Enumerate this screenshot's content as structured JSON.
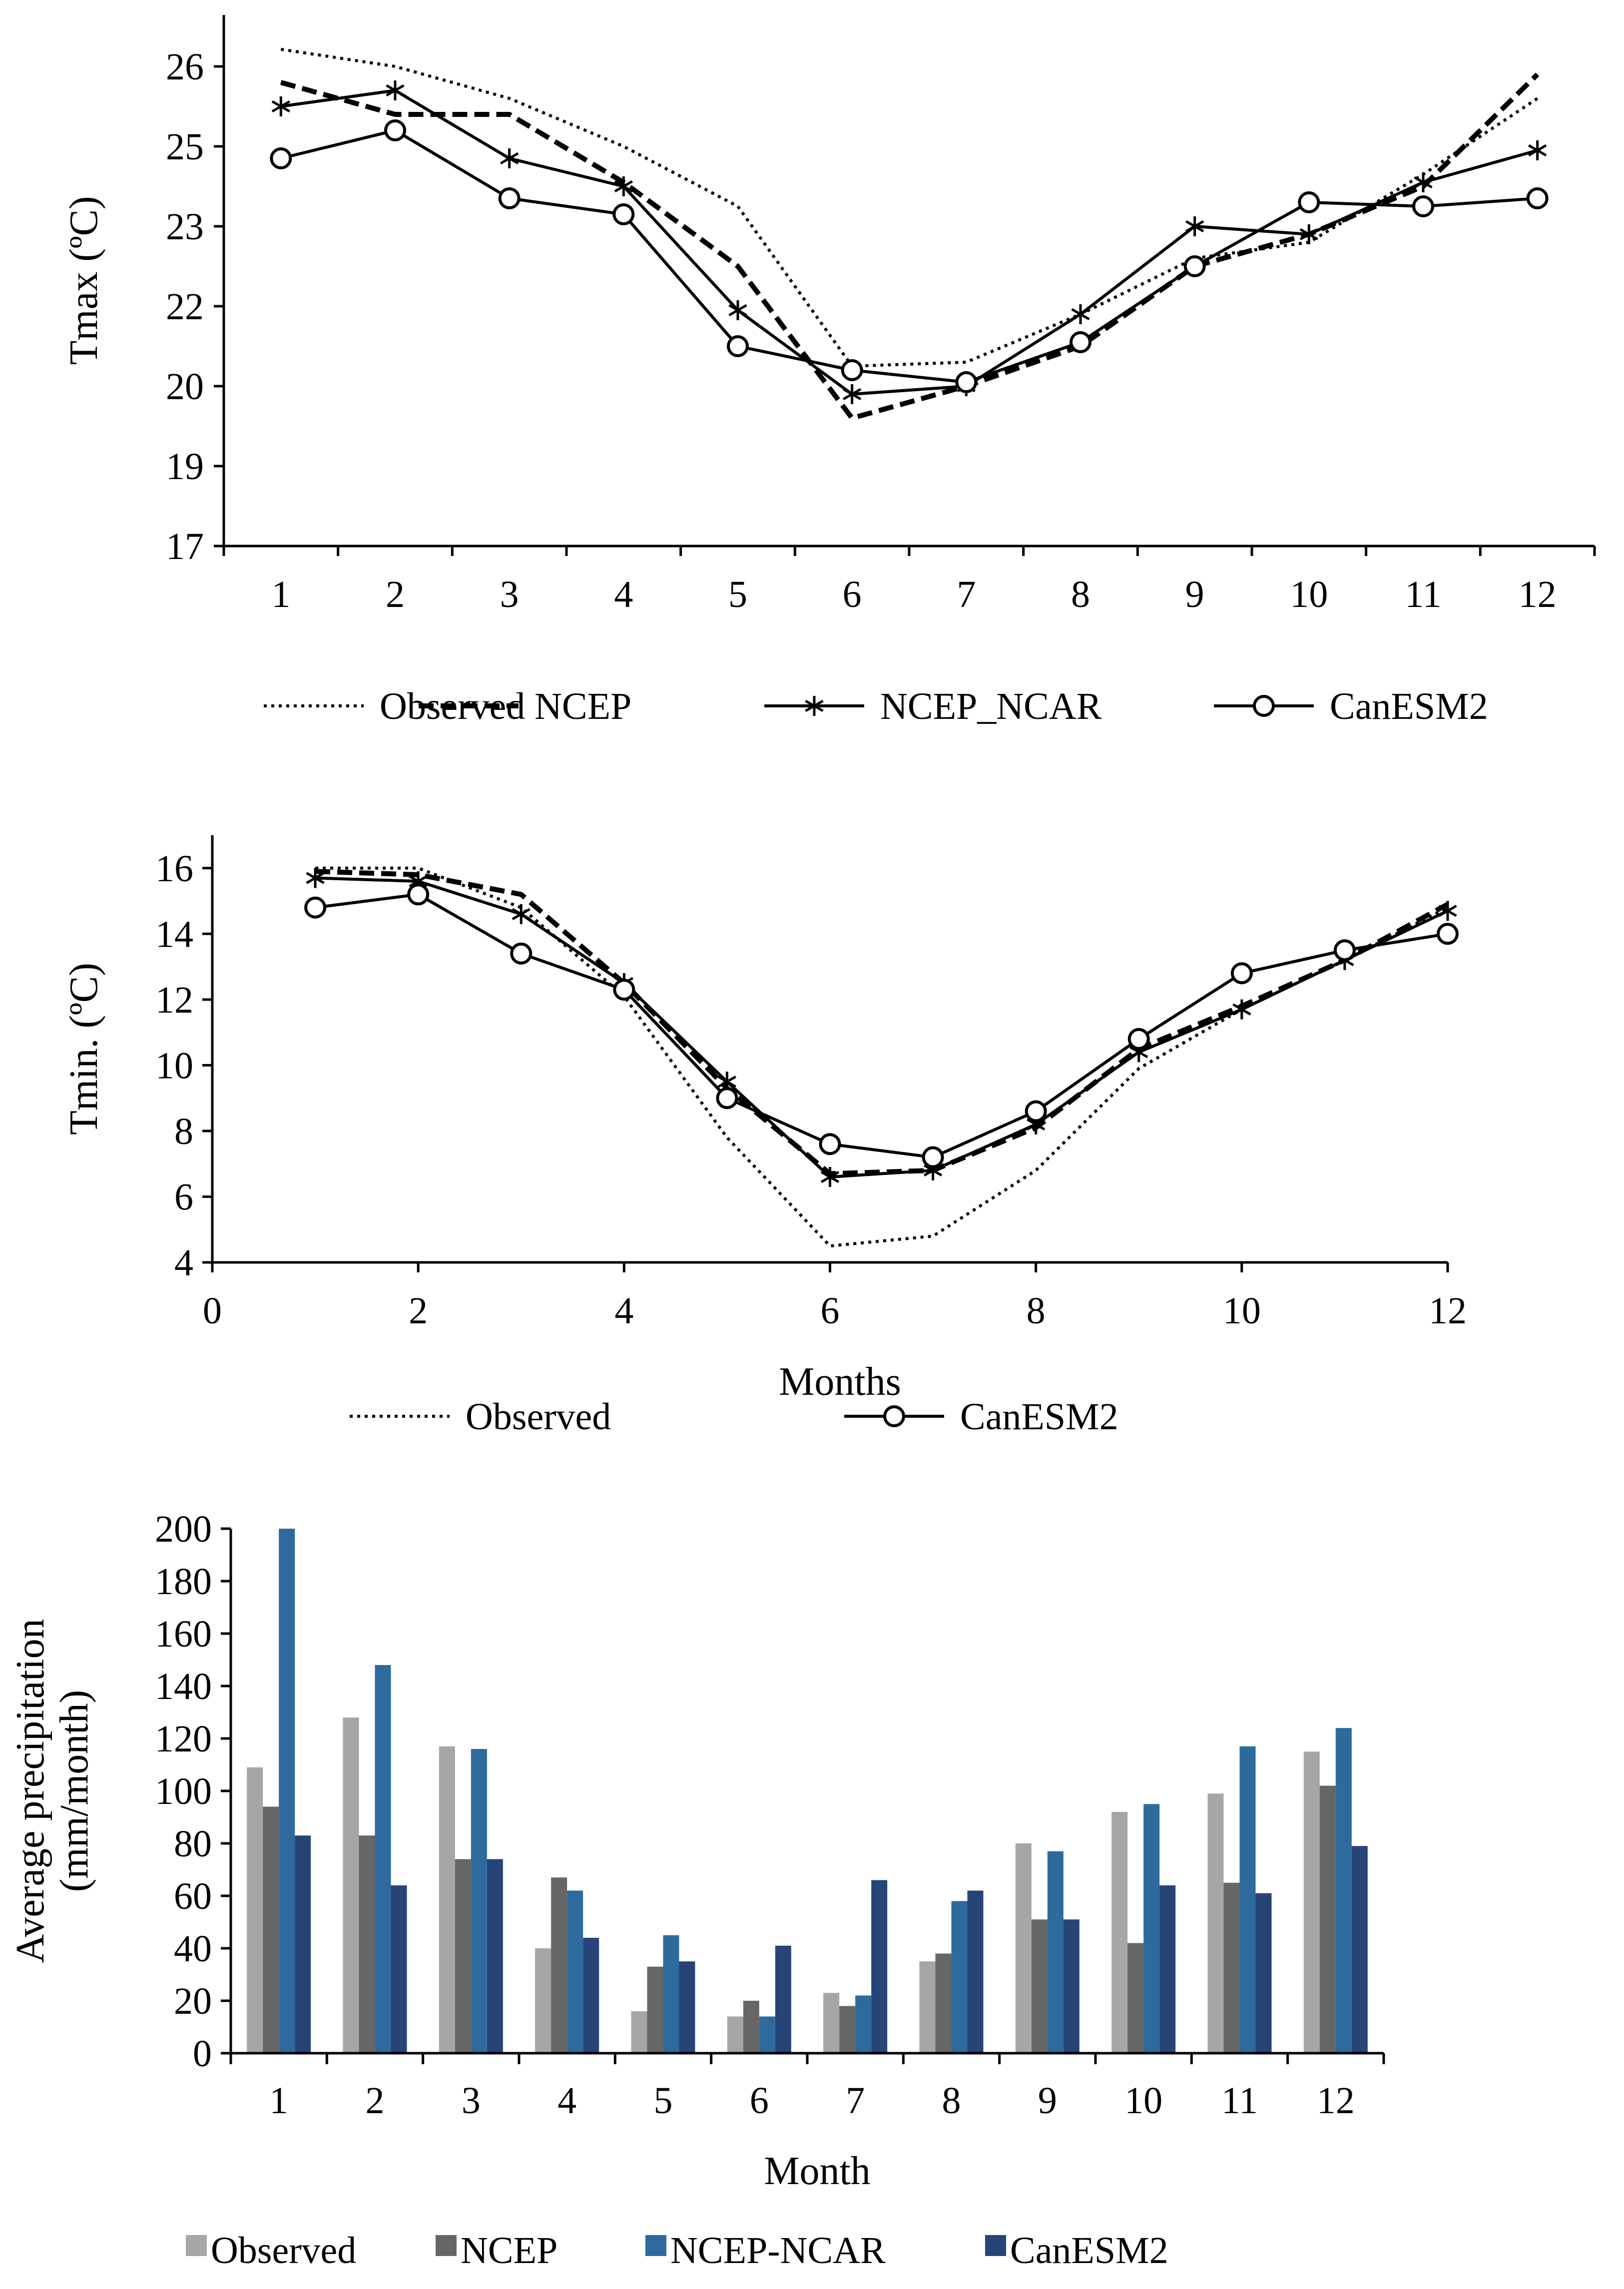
{
  "chart_data": [
    {
      "type": "line",
      "ylabel": "Tmax (ºC)",
      "xlabel": "",
      "categories": [
        "1",
        "2",
        "3",
        "4",
        "5",
        "6",
        "7",
        "8",
        "9",
        "10",
        "11",
        "12"
      ],
      "yticks": [
        "17",
        "19",
        "20",
        "22",
        "23",
        "25",
        "26"
      ],
      "ylim": [
        17,
        26.6
      ],
      "series": [
        {
          "name": "Observed",
          "style": "dotted",
          "marker": "none",
          "values": [
            26.2,
            26.0,
            25.6,
            25.0,
            23.5,
            20.5,
            20.6,
            21.8,
            22.6,
            22.8,
            24.3,
            25.6
          ]
        },
        {
          "name": "NCEP",
          "style": "dashed",
          "marker": "none",
          "values": [
            25.8,
            25.4,
            25.4,
            24.1,
            22.5,
            19.6,
            20.0,
            21.0,
            22.5,
            22.9,
            24.0,
            25.9
          ]
        },
        {
          "name": "NCEP_NCAR",
          "style": "solid",
          "marker": "star",
          "values": [
            25.5,
            25.7,
            24.7,
            24.0,
            21.9,
            19.9,
            20.0,
            21.8,
            23.0,
            22.9,
            24.1,
            24.9
          ]
        },
        {
          "name": "CanESM2",
          "style": "solid",
          "marker": "circle",
          "values": [
            24.7,
            25.2,
            23.7,
            23.3,
            21.0,
            20.4,
            20.1,
            21.1,
            22.5,
            23.6,
            23.5,
            23.7
          ]
        }
      ],
      "legend": "bottom"
    },
    {
      "type": "line",
      "ylabel": "Tmin. (ºC)",
      "xlabel": "Months",
      "x": [
        1,
        2,
        3,
        4,
        5,
        6,
        7,
        8,
        9,
        10,
        11,
        12
      ],
      "xticks": [
        "0",
        "2",
        "4",
        "6",
        "8",
        "10",
        "12"
      ],
      "yticks": [
        "4",
        "6",
        "8",
        "10",
        "12",
        "14",
        "16"
      ],
      "xlim": [
        0,
        12
      ],
      "ylim": [
        4,
        17
      ],
      "series": [
        {
          "name": "Observed",
          "style": "dotted",
          "marker": "none",
          "values": [
            16.0,
            16.0,
            14.8,
            12.1,
            7.8,
            4.5,
            4.8,
            6.8,
            9.9,
            11.7,
            13.2,
            14.8
          ]
        },
        {
          "name": "",
          "style": "dashed",
          "marker": "none",
          "values": [
            15.9,
            15.8,
            15.2,
            12.5,
            9.3,
            6.7,
            6.8,
            8.1,
            10.5,
            11.8,
            13.2,
            14.9
          ]
        },
        {
          "name": "",
          "style": "solid",
          "marker": "star",
          "values": [
            15.7,
            15.6,
            14.6,
            12.5,
            9.5,
            6.6,
            6.8,
            8.2,
            10.4,
            11.7,
            13.2,
            14.7
          ]
        },
        {
          "name": "CanESM2",
          "style": "solid",
          "marker": "circle",
          "values": [
            14.8,
            15.2,
            13.4,
            12.3,
            9.0,
            7.6,
            7.2,
            8.6,
            10.8,
            12.8,
            13.5,
            14.0
          ]
        }
      ],
      "legend": "bottom"
    },
    {
      "type": "bar",
      "ylabel": "Average precipitation (mm/month)",
      "ylabel_lines": [
        "Average precipitation",
        "(mm/month)"
      ],
      "xlabel": "Month",
      "categories": [
        "1",
        "2",
        "3",
        "4",
        "5",
        "6",
        "7",
        "8",
        "9",
        "10",
        "11",
        "12"
      ],
      "yticks": [
        "0",
        "20",
        "40",
        "60",
        "80",
        "100",
        "120",
        "140",
        "160",
        "180",
        "200"
      ],
      "ylim": [
        0,
        200
      ],
      "series": [
        {
          "name": "Observed",
          "color": "#a6a6a6",
          "values": [
            109,
            128,
            117,
            40,
            16,
            14,
            23,
            35,
            80,
            92,
            99,
            115
          ]
        },
        {
          "name": "NCEP",
          "color": "#666666",
          "values": [
            94,
            83,
            74,
            67,
            33,
            20,
            18,
            38,
            51,
            42,
            65,
            102
          ]
        },
        {
          "name": "NCEP-NCAR",
          "color": "#2e6a9e",
          "values": [
            200,
            148,
            116,
            62,
            45,
            14,
            22,
            58,
            77,
            95,
            117,
            124
          ]
        },
        {
          "name": "CanESM2",
          "color": "#264478",
          "values": [
            83,
            64,
            74,
            44,
            35,
            41,
            66,
            62,
            51,
            64,
            61,
            79
          ]
        }
      ],
      "legend": "bottom"
    }
  ]
}
